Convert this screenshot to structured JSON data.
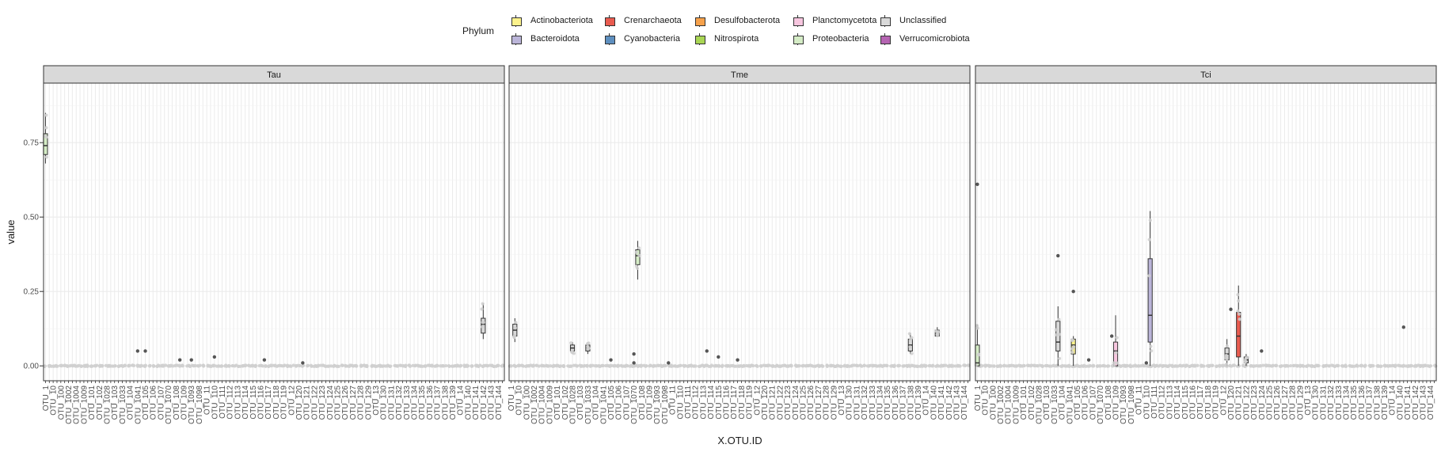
{
  "chart_data": {
    "type": "box",
    "x_label": "X.OTU.ID",
    "y_label": "value",
    "y_range": [
      -0.05,
      0.95
    ],
    "y_ticks": [
      0.0,
      0.25,
      0.5,
      0.75
    ],
    "y_tick_labels": [
      "0.00",
      "0.25",
      "0.50",
      "0.75"
    ],
    "grid": true,
    "legend": {
      "title": "Phylum",
      "placement": "top",
      "items": [
        {
          "name": "Actinobacteriota",
          "color": "#fcf28c"
        },
        {
          "name": "Crenarchaeota",
          "color": "#e95b4f"
        },
        {
          "name": "Desulfobacterota",
          "color": "#f6a14b"
        },
        {
          "name": "Planctomycetota",
          "color": "#f7c6df"
        },
        {
          "name": "Unclassified",
          "color": "#d9d9d9"
        },
        {
          "name": "Bacteroidota",
          "color": "#bbb5d9"
        },
        {
          "name": "Cyanobacteria",
          "color": "#5e8fbf"
        },
        {
          "name": "Nitrospirota",
          "color": "#a9d654"
        },
        {
          "name": "Proteobacteria",
          "color": "#d5ecc6"
        },
        {
          "name": "Verrucomicrobiota",
          "color": "#b564b2"
        }
      ]
    },
    "panels": [
      {
        "name": "Tau",
        "n_categories": 120,
        "tick_labels": [
          "OTU_1",
          "OTU_10",
          "OTU_100",
          "OTU_1002",
          "OTU_1004",
          "OTU_1009",
          "OTU_101",
          "OTU_102",
          "OTU_1028",
          "OTU_103",
          "OTU_1033",
          "OTU_104",
          "OTU_1041",
          "OTU_105",
          "OTU_106",
          "OTU_107",
          "OTU_1070",
          "OTU_108",
          "OTU_109",
          "OTU_1093",
          "OTU_1098",
          "OTU_11",
          "OTU_110",
          "OTU_111",
          "OTU_112",
          "OTU_113",
          "OTU_114",
          "OTU_115",
          "OTU_116",
          "OTU_117",
          "OTU_118",
          "OTU_119",
          "OTU_12",
          "OTU_120",
          "OTU_121",
          "OTU_122",
          "OTU_123",
          "OTU_124",
          "OTU_125",
          "OTU_126",
          "OTU_127",
          "OTU_128",
          "OTU_129",
          "OTU_13",
          "OTU_130",
          "OTU_131",
          "OTU_132",
          "OTU_133",
          "OTU_134",
          "OTU_135",
          "OTU_136",
          "OTU_137",
          "OTU_138",
          "OTU_139",
          "OTU_14",
          "OTU_140",
          "OTU_141",
          "OTU_142",
          "OTU_143",
          "OTU_144"
        ],
        "boxes": [
          {
            "pos": 1,
            "phylum": "Proteobacteria",
            "q1": 0.71,
            "median": 0.74,
            "q3": 0.78,
            "wlo": 0.68,
            "whi": 0.85
          },
          {
            "pos": 115,
            "phylum": "Unclassified",
            "q1": 0.11,
            "median": 0.14,
            "q3": 0.16,
            "wlo": 0.09,
            "whi": 0.21
          }
        ],
        "dark_points": [
          [
            25,
            0.05
          ],
          [
            27,
            0.05
          ],
          [
            36,
            0.02
          ],
          [
            39,
            0.02
          ],
          [
            58,
            0.02
          ],
          [
            45,
            0.03
          ],
          [
            68,
            0.01
          ]
        ]
      },
      {
        "name": "Tme",
        "n_categories": 120,
        "tick_labels": [
          "OTU_1",
          "OTU_10",
          "OTU_100",
          "OTU_1002",
          "OTU_1004",
          "OTU_1009",
          "OTU_101",
          "OTU_102",
          "OTU_1028",
          "OTU_103",
          "OTU_1033",
          "OTU_104",
          "OTU_1041",
          "OTU_105",
          "OTU_106",
          "OTU_107",
          "OTU_1070",
          "OTU_108",
          "OTU_109",
          "OTU_1093",
          "OTU_1098",
          "OTU_11",
          "OTU_110",
          "OTU_111",
          "OTU_112",
          "OTU_113",
          "OTU_114",
          "OTU_115",
          "OTU_116",
          "OTU_117",
          "OTU_118",
          "OTU_119",
          "OTU_12",
          "OTU_120",
          "OTU_121",
          "OTU_122",
          "OTU_123",
          "OTU_124",
          "OTU_125",
          "OTU_126",
          "OTU_127",
          "OTU_128",
          "OTU_129",
          "OTU_13",
          "OTU_130",
          "OTU_131",
          "OTU_132",
          "OTU_133",
          "OTU_134",
          "OTU_135",
          "OTU_136",
          "OTU_137",
          "OTU_138",
          "OTU_139",
          "OTU_14",
          "OTU_140",
          "OTU_141",
          "OTU_142",
          "OTU_143",
          "OTU_144"
        ],
        "boxes": [
          {
            "pos": 2,
            "phylum": "Unclassified",
            "q1": 0.1,
            "median": 0.12,
            "q3": 0.14,
            "wlo": 0.08,
            "whi": 0.16
          },
          {
            "pos": 17,
            "phylum": "Unclassified",
            "q1": 0.05,
            "median": 0.06,
            "q3": 0.07,
            "wlo": 0.04,
            "whi": 0.08
          },
          {
            "pos": 21,
            "phylum": "Unclassified",
            "q1": 0.05,
            "median": 0.06,
            "q3": 0.07,
            "wlo": 0.04,
            "whi": 0.08
          },
          {
            "pos": 34,
            "phylum": "Proteobacteria",
            "q1": 0.34,
            "median": 0.37,
            "q3": 0.39,
            "wlo": 0.29,
            "whi": 0.42
          },
          {
            "pos": 105,
            "phylum": "Unclassified",
            "q1": 0.05,
            "median": 0.07,
            "q3": 0.09,
            "wlo": 0.04,
            "whi": 0.11
          },
          {
            "pos": 112,
            "phylum": "Unclassified",
            "q1": 0.1,
            "median": 0.11,
            "q3": 0.12,
            "wlo": 0.1,
            "whi": 0.13
          }
        ],
        "dark_points": [
          [
            33,
            0.04
          ],
          [
            33,
            0.01
          ],
          [
            27,
            0.02
          ],
          [
            55,
            0.03
          ],
          [
            60,
            0.02
          ],
          [
            52,
            0.05
          ],
          [
            42,
            0.01
          ]
        ]
      },
      {
        "name": "Tci",
        "n_categories": 120,
        "tick_labels": [
          "OTU_1",
          "OTU_10",
          "OTU_100",
          "OTU_1002",
          "OTU_1004",
          "OTU_1009",
          "OTU_101",
          "OTU_102",
          "OTU_1028",
          "OTU_103",
          "OTU_1033",
          "OTU_104",
          "OTU_1041",
          "OTU_105",
          "OTU_106",
          "OTU_107",
          "OTU_1070",
          "OTU_108",
          "OTU_109",
          "OTU_1093",
          "OTU_1098",
          "OTU_11",
          "OTU_110",
          "OTU_111",
          "OTU_112",
          "OTU_113",
          "OTU_114",
          "OTU_115",
          "OTU_116",
          "OTU_117",
          "OTU_118",
          "OTU_119",
          "OTU_12",
          "OTU_120",
          "OTU_121",
          "OTU_122",
          "OTU_123",
          "OTU_124",
          "OTU_125",
          "OTU_126",
          "OTU_127",
          "OTU_128",
          "OTU_129",
          "OTU_13",
          "OTU_130",
          "OTU_131",
          "OTU_132",
          "OTU_133",
          "OTU_134",
          "OTU_135",
          "OTU_136",
          "OTU_137",
          "OTU_138",
          "OTU_139",
          "OTU_14",
          "OTU_140",
          "OTU_141",
          "OTU_142",
          "OTU_143",
          "OTU_144"
        ],
        "boxes": [
          {
            "pos": 1,
            "phylum": "Proteobacteria",
            "q1": 0.0,
            "median": 0.01,
            "q3": 0.07,
            "wlo": 0.0,
            "whi": 0.14
          },
          {
            "pos": 22,
            "phylum": "Unclassified",
            "q1": 0.05,
            "median": 0.08,
            "q3": 0.15,
            "wlo": 0.0,
            "whi": 0.2
          },
          {
            "pos": 26,
            "phylum": "Actinobacteriota",
            "q1": 0.04,
            "median": 0.07,
            "q3": 0.09,
            "wlo": 0.0,
            "whi": 0.1
          },
          {
            "pos": 37,
            "phylum": "Planctomycetota",
            "q1": 0.0,
            "median": 0.05,
            "q3": 0.08,
            "wlo": 0.0,
            "whi": 0.17
          },
          {
            "pos": 46,
            "phylum": "Bacteroidota",
            "q1": 0.08,
            "median": 0.17,
            "q3": 0.36,
            "wlo": 0.0,
            "whi": 0.52
          },
          {
            "pos": 66,
            "phylum": "Unclassified",
            "q1": 0.02,
            "median": 0.04,
            "q3": 0.06,
            "wlo": 0.0,
            "whi": 0.09
          },
          {
            "pos": 69,
            "phylum": "Crenarchaeota",
            "q1": 0.03,
            "median": 0.1,
            "q3": 0.18,
            "wlo": 0.0,
            "whi": 0.27
          },
          {
            "pos": 71,
            "phylum": "Unclassified",
            "q1": 0.01,
            "median": 0.02,
            "q3": 0.03,
            "wlo": 0.0,
            "whi": 0.04
          }
        ],
        "dark_points": [
          [
            1,
            0.61
          ],
          [
            22,
            0.37
          ],
          [
            26,
            0.25
          ],
          [
            67,
            0.19
          ],
          [
            112,
            0.13
          ],
          [
            36,
            0.1
          ],
          [
            30,
            0.02
          ],
          [
            75,
            0.05
          ],
          [
            45,
            0.01
          ]
        ]
      }
    ]
  }
}
